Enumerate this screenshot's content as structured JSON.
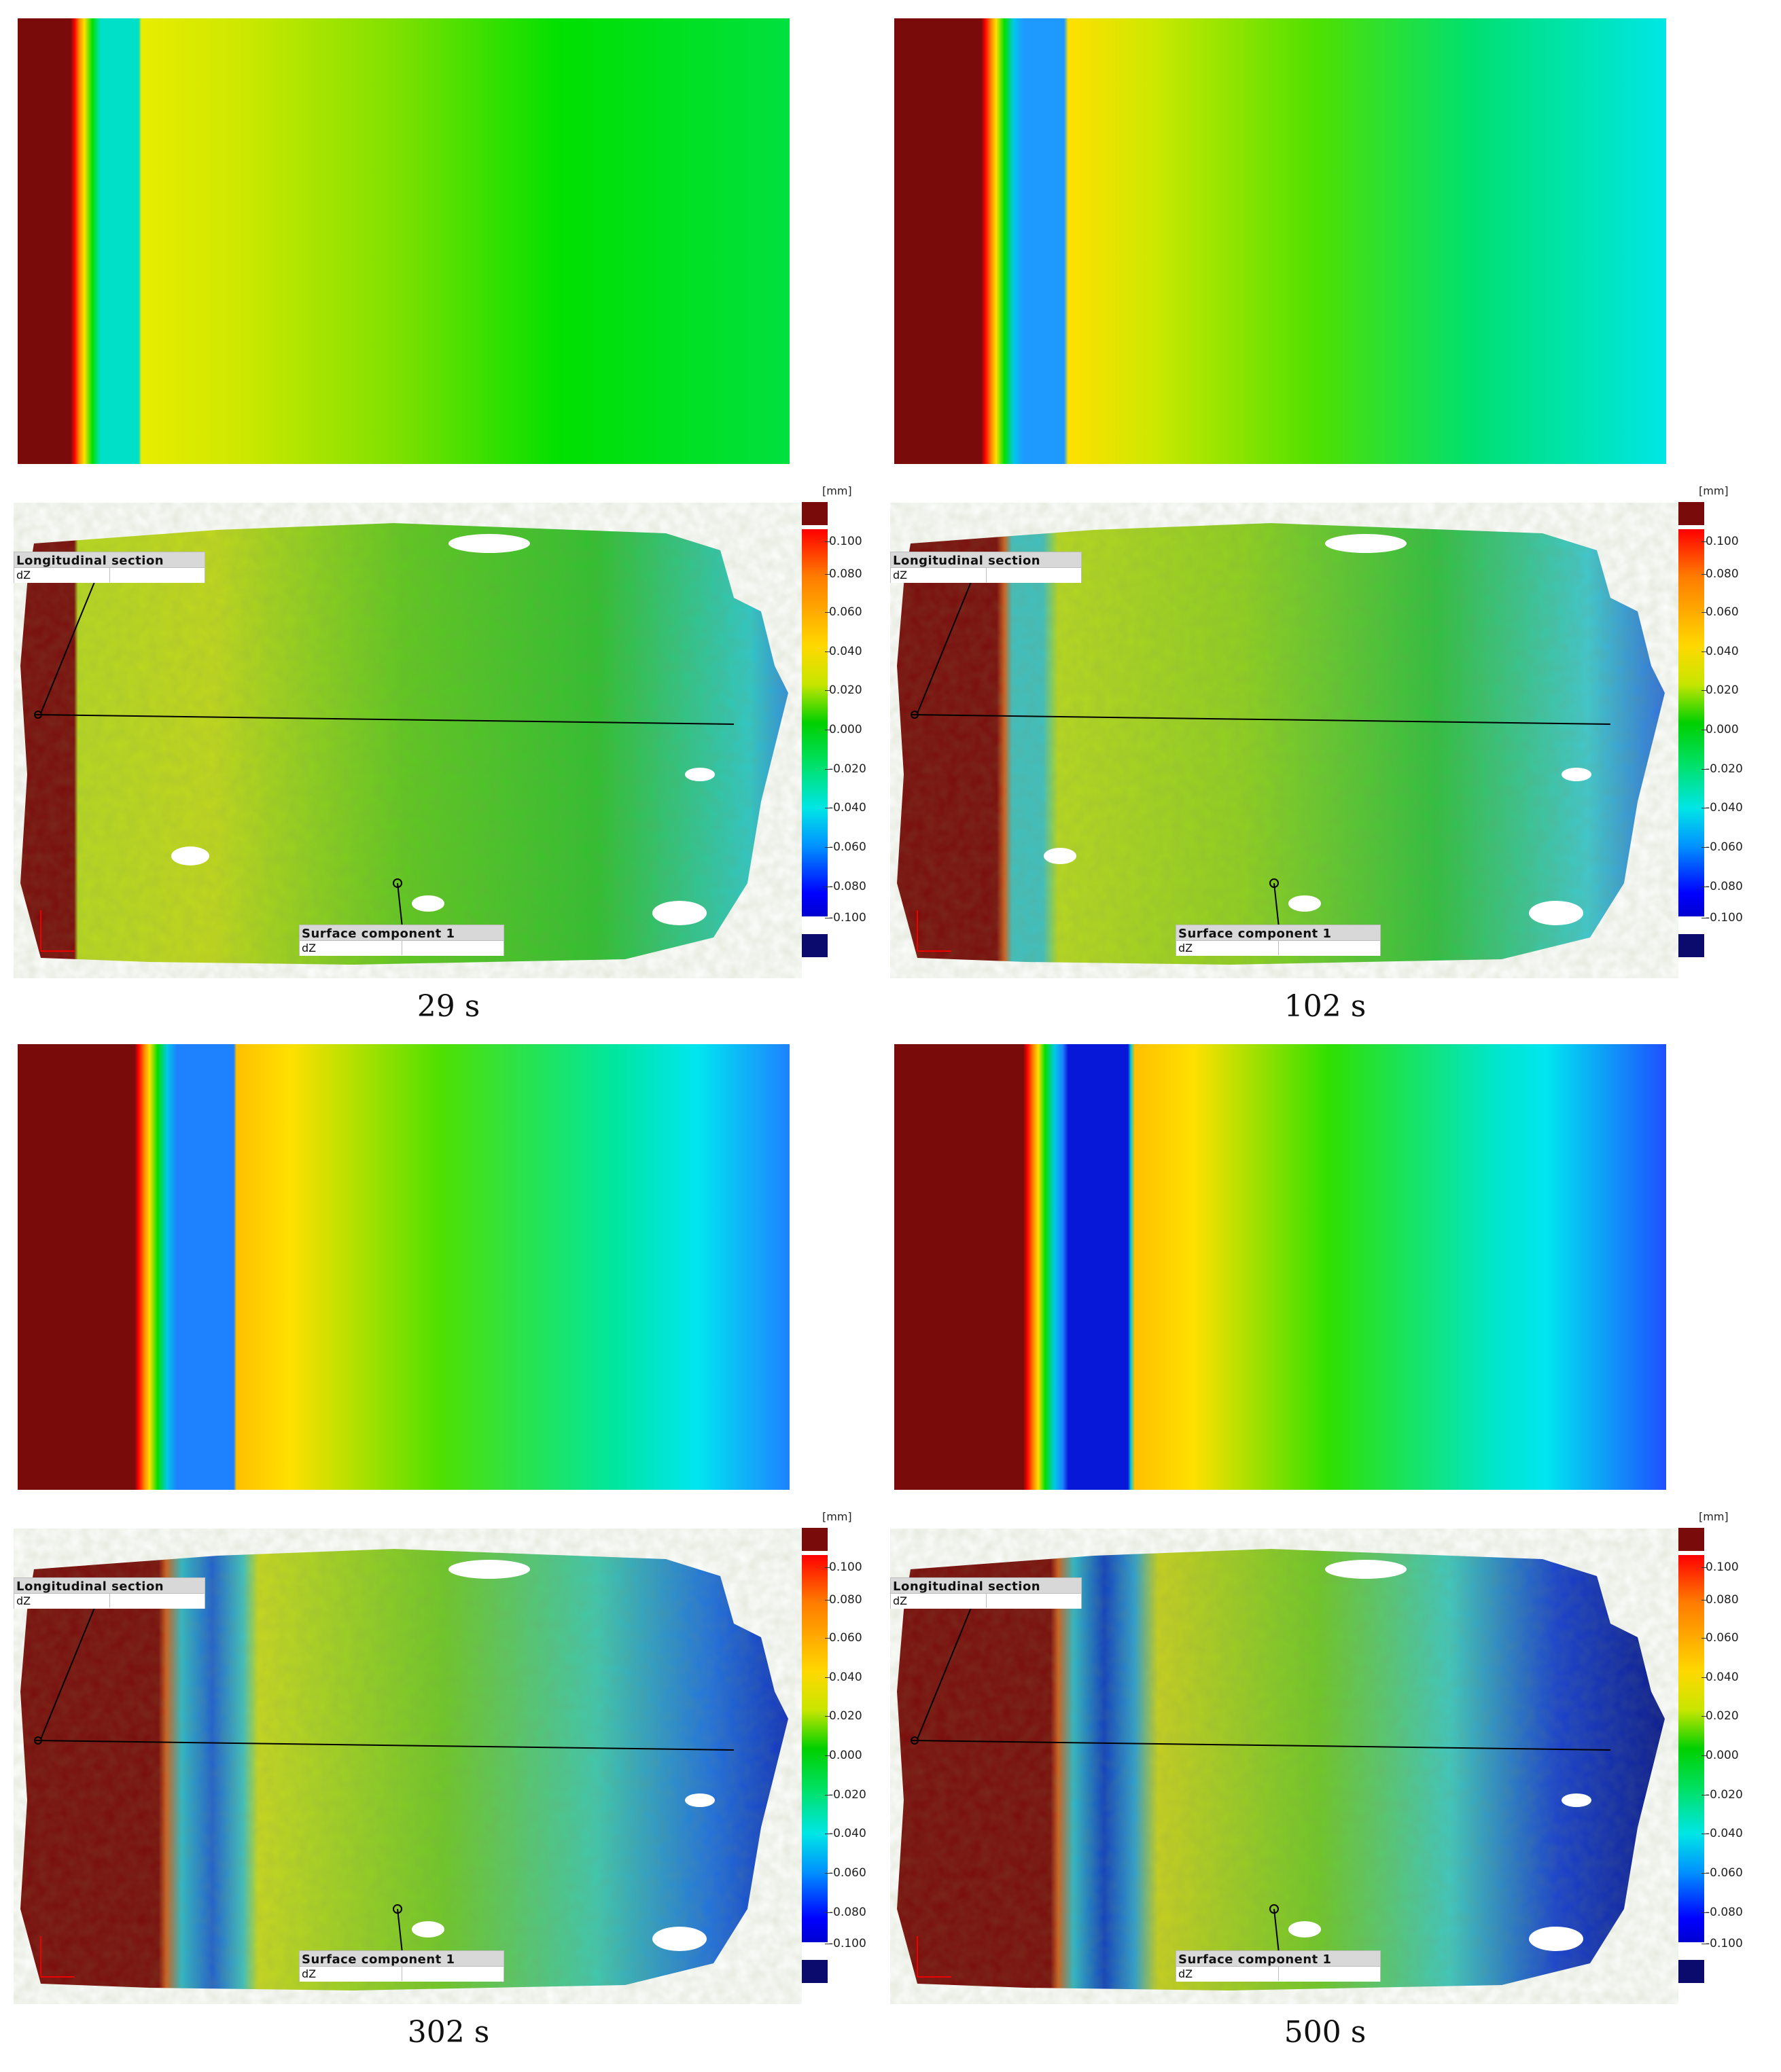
{
  "colors": {
    "dark_red": "#7a0b0b",
    "red": "#ff0000",
    "orange": "#ff7a00",
    "yellow": "#ffe000",
    "green": "#00e000",
    "cyan": "#00e8e8",
    "blue": "#0090ff",
    "deep_blue": "#0000ff",
    "navy": "#0b0b6e"
  },
  "panels": [
    {
      "caption": "29 s",
      "scan": {
        "section_label": "Longitudinal section",
        "section_value": "dZ",
        "surface_label": "Surface component 1",
        "surface_value": "dZ"
      },
      "legend": {
        "unit": "[mm]",
        "ticks": [
          "0.100",
          "0.080",
          "0.060",
          "0.040",
          "0.020",
          "0.000",
          "-0.020",
          "-0.040",
          "-0.060",
          "-0.080",
          "-0.100"
        ]
      }
    },
    {
      "caption": "102 s",
      "scan": {
        "section_label": "Longitudinal section",
        "section_value": "dZ",
        "surface_label": "Surface component 1",
        "surface_value": "dZ"
      },
      "legend": {
        "unit": "[mm]",
        "ticks": [
          "0.100",
          "0.080",
          "0.060",
          "0.040",
          "0.020",
          "0.000",
          "-0.020",
          "-0.040",
          "-0.060",
          "-0.080",
          "-0.100"
        ]
      }
    },
    {
      "caption": "302 s",
      "scan": {
        "section_label": "Longitudinal section",
        "section_value": "dZ",
        "surface_label": "Surface component 1",
        "surface_value": "dZ"
      },
      "legend": {
        "unit": "[mm]",
        "ticks": [
          "0.100",
          "0.080",
          "0.060",
          "0.040",
          "0.020",
          "0.000",
          "-0.020",
          "-0.040",
          "-0.060",
          "-0.080",
          "-0.100"
        ]
      }
    },
    {
      "caption": "500 s",
      "scan": {
        "section_label": "Longitudinal section",
        "section_value": "dZ",
        "surface_label": "Surface component 1",
        "surface_value": "dZ"
      },
      "legend": {
        "unit": "[mm]",
        "ticks": [
          "0.100",
          "0.080",
          "0.060",
          "0.040",
          "0.020",
          "0.000",
          "-0.020",
          "-0.040",
          "-0.060",
          "-0.080",
          "-0.100"
        ]
      }
    }
  ]
}
